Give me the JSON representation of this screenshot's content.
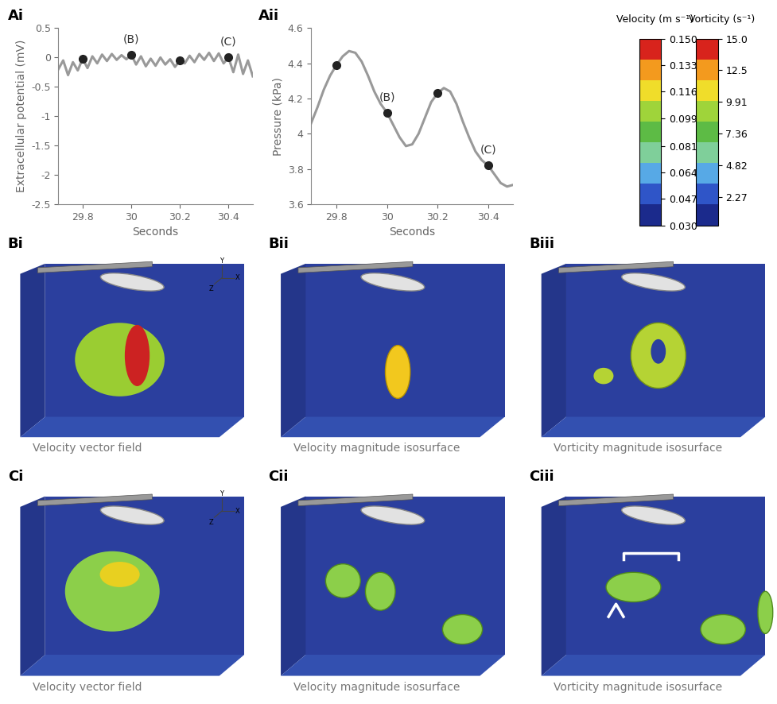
{
  "chart_data": [
    {
      "type": "line",
      "title": "Ai",
      "x_label": "Seconds",
      "y_label": "Extracellular potential (mV)",
      "color": "#999999",
      "x": [
        29.7,
        29.72,
        29.74,
        29.76,
        29.78,
        29.8,
        29.82,
        29.84,
        29.86,
        29.88,
        29.9,
        29.92,
        29.94,
        29.96,
        29.98,
        30.0,
        30.02,
        30.04,
        30.06,
        30.08,
        30.1,
        30.12,
        30.14,
        30.16,
        30.18,
        30.2,
        30.22,
        30.24,
        30.26,
        30.28,
        30.3,
        30.32,
        30.34,
        30.36,
        30.38,
        30.4,
        30.42,
        30.44,
        30.46,
        30.48,
        30.5
      ],
      "values": [
        -0.2,
        -0.05,
        -0.3,
        -0.08,
        -0.22,
        -0.02,
        -0.18,
        0.02,
        -0.1,
        0.05,
        -0.06,
        0.06,
        -0.04,
        0.04,
        -0.03,
        0.05,
        -0.12,
        0.02,
        -0.15,
        -0.02,
        -0.14,
        0.0,
        -0.12,
        -0.03,
        -0.16,
        -0.05,
        -0.1,
        0.03,
        -0.08,
        0.06,
        -0.04,
        0.08,
        -0.06,
        0.07,
        -0.1,
        0.0,
        -0.25,
        0.05,
        -0.28,
        -0.05,
        -0.32
      ],
      "points": [
        {
          "x": 29.8,
          "y": -0.02
        },
        {
          "x": 30,
          "y": 0.05,
          "label": "(B)"
        },
        {
          "x": 30.2,
          "y": -0.05
        },
        {
          "x": 30.4,
          "y": 0.0,
          "label": "(C)"
        }
      ],
      "xlim": [
        29.7,
        30.5
      ],
      "xticks": [
        29.8,
        30,
        30.2,
        30.4
      ],
      "ylim": [
        -2.5,
        0.5
      ],
      "yticks": [
        -2.5,
        -2,
        -1.5,
        -1,
        -0.5,
        0,
        0.5
      ]
    },
    {
      "type": "line",
      "title": "Aii",
      "x_label": "Seconds",
      "y_label": "Pressure (kPa)",
      "color": "#999999",
      "x": [
        29.7,
        29.725,
        29.75,
        29.775,
        29.8,
        29.825,
        29.85,
        29.875,
        29.9,
        29.925,
        29.95,
        29.975,
        30.0,
        30.025,
        30.05,
        30.075,
        30.1,
        30.125,
        30.15,
        30.175,
        30.2,
        30.225,
        30.25,
        30.275,
        30.3,
        30.325,
        30.35,
        30.375,
        30.4,
        30.425,
        30.45,
        30.475,
        30.5
      ],
      "values": [
        4.06,
        4.15,
        4.25,
        4.33,
        4.39,
        4.44,
        4.47,
        4.46,
        4.41,
        4.33,
        4.24,
        4.17,
        4.12,
        4.05,
        3.98,
        3.93,
        3.94,
        4.0,
        4.09,
        4.18,
        4.23,
        4.26,
        4.24,
        4.17,
        4.07,
        3.98,
        3.9,
        3.85,
        3.82,
        3.77,
        3.72,
        3.7,
        3.71
      ],
      "points": [
        {
          "x": 29.8,
          "y": 4.39
        },
        {
          "x": 30,
          "y": 4.12,
          "label": "(B)"
        },
        {
          "x": 30.2,
          "y": 4.23
        },
        {
          "x": 30.4,
          "y": 3.82,
          "label": "(C)"
        }
      ],
      "xlim": [
        29.7,
        30.5
      ],
      "xticks": [
        29.8,
        30,
        30.2,
        30.4
      ],
      "ylim": [
        3.6,
        4.6
      ],
      "yticks": [
        3.6,
        3.8,
        4,
        4.2,
        4.4,
        4.6
      ]
    },
    {
      "type": "colorbar",
      "title": "Velocity (m s⁻¹)",
      "range": [
        0.03,
        0.15
      ],
      "ticks": [
        {
          "value": 0.03,
          "label": "0.030"
        },
        0.047,
        0.064,
        0.081,
        0.099,
        0.116,
        0.133,
        {
          "value": 0.15,
          "label": "0.150"
        }
      ]
    },
    {
      "type": "colorbar",
      "title": "Vorticity (s⁻¹)",
      "range": [
        0,
        15
      ],
      "ticks": [
        2.27,
        4.82,
        7.36,
        9.91,
        12.5,
        {
          "value": 15,
          "label": "15.0"
        }
      ]
    }
  ],
  "panels": [
    {
      "label": "Bi",
      "caption": "Velocity vector field"
    },
    {
      "label": "Bii",
      "caption": "Velocity magnitude isosurface"
    },
    {
      "label": "Biii",
      "caption": "Vorticity magnitude isosurface"
    },
    {
      "label": "Ci",
      "caption": "Velocity vector field"
    },
    {
      "label": "Cii",
      "caption": "Velocity magnitude isosurface"
    },
    {
      "label": "Ciii",
      "caption": "Vorticity magnitude isosurface"
    }
  ],
  "axis_triad": [
    "Y",
    "Z",
    "X"
  ]
}
